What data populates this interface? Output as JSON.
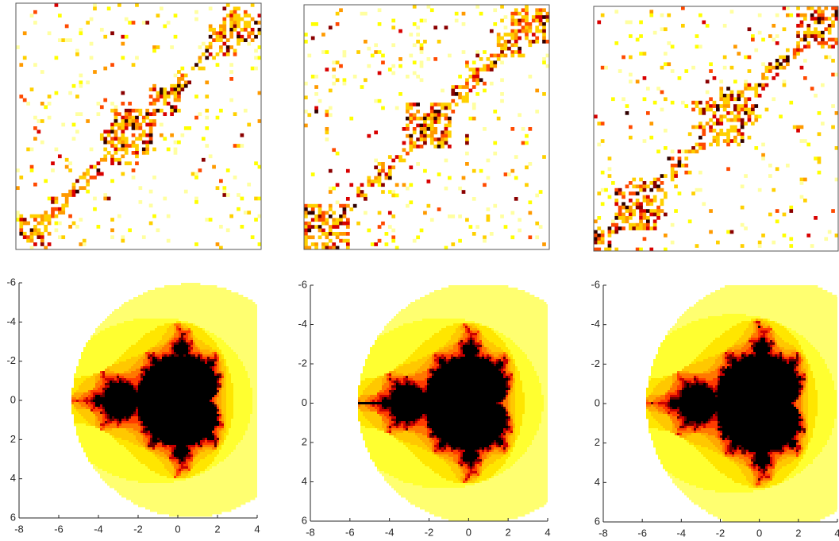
{
  "chart_data": [
    {
      "type": "fractal",
      "xlim": [
        -8,
        4
      ],
      "ylim": [
        -6,
        6
      ],
      "y_reversed": true,
      "xticks": [
        -8,
        -6,
        -4,
        -2,
        0,
        2,
        4
      ],
      "yticks": [
        -6,
        -4,
        -2,
        0,
        2,
        4,
        6
      ]
    },
    {
      "type": "fractal",
      "xlim": [
        -8,
        4
      ],
      "ylim": [
        -6,
        6
      ],
      "y_reversed": true,
      "xticks": [
        -8,
        -6,
        -4,
        -2,
        0,
        2,
        4
      ],
      "yticks": [
        -6,
        -4,
        -2,
        0,
        2,
        4,
        6
      ]
    },
    {
      "type": "fractal",
      "xlim": [
        -8,
        4
      ],
      "ylim": [
        -6,
        6
      ],
      "y_reversed": true,
      "xticks": [
        -8,
        -6,
        -4,
        -2,
        0,
        2,
        4
      ],
      "yticks": [
        -6,
        -4,
        -2,
        0,
        2,
        4,
        6
      ]
    }
  ]
}
